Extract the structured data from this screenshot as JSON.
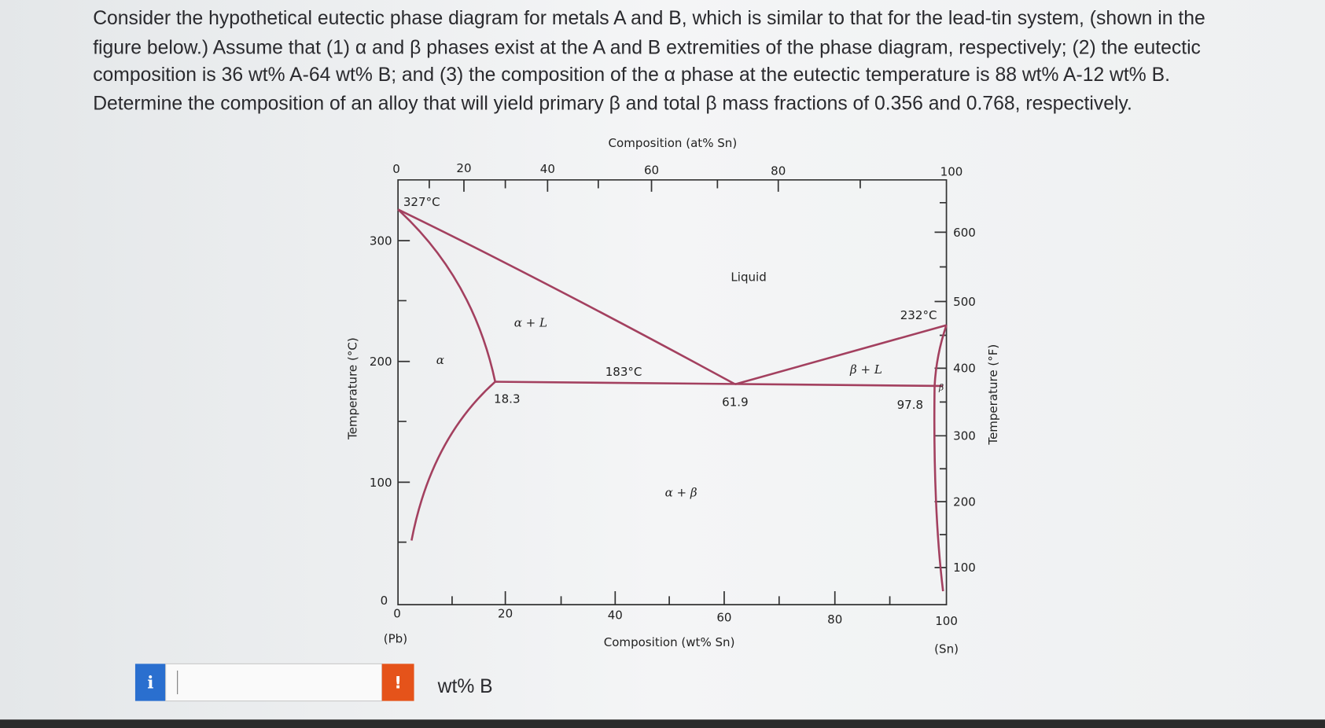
{
  "question": {
    "lines": [
      "Consider the hypothetical eutectic phase diagram for metals A and B, which is similar to that for the lead-tin system, (shown in the",
      "figure below.) Assume that (1) α and β phases exist at the A and B extremities of the phase diagram, respectively; (2) the eutectic",
      "composition is 36 wt% A-64 wt% B; and (3) the composition of the α phase at the eutectic temperature is 88 wt% A-12 wt% B.",
      "Determine the composition of an alloy that will yield primary β and total β mass fractions of 0.356 and 0.768, respectively."
    ]
  },
  "figure": {
    "top_axis_title": "Composition (at% Sn)",
    "top_ticks": [
      "0",
      "20",
      "40",
      "60",
      "80",
      "100"
    ],
    "left_axis_title": "Temperature (°C)",
    "left_ticks": [
      "300",
      "200",
      "100",
      "0"
    ],
    "right_axis_title": "Temperature (°F)",
    "right_ticks": [
      "600",
      "500",
      "400",
      "300",
      "200",
      "100"
    ],
    "bottom_ticks": [
      "0",
      "20",
      "40",
      "60",
      "80",
      "100"
    ],
    "bottom_axis_title": "Composition (wt% Sn)",
    "bottom_end_labels": [
      "(Pb)",
      "(Sn)"
    ],
    "region_labels": [
      "Liquid",
      "α + L",
      "α",
      "β + L",
      "β",
      "α + β"
    ],
    "point_labels": [
      "327°C",
      "232°C",
      "183°C",
      "18.3",
      "61.9",
      "97.8"
    ]
  },
  "answer": {
    "info_icon": "i",
    "error_icon": "!",
    "unit": "wt% B"
  }
}
